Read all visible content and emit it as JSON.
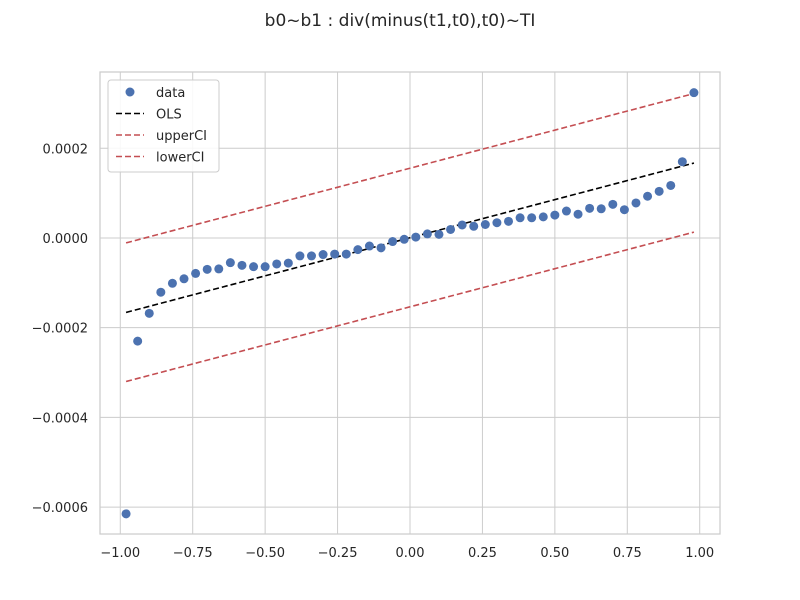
{
  "chart_data": {
    "type": "scatter",
    "title": "b0~b1 : div(minus(t1,t0),t0)~TI",
    "xlabel": "",
    "ylabel": "",
    "xlim": [
      -1.07,
      1.07
    ],
    "ylim": [
      -0.00066,
      0.00037
    ],
    "grid": true,
    "legend_position": "top-left",
    "xticks": [
      -1.0,
      -0.75,
      -0.5,
      -0.25,
      0.0,
      0.25,
      0.5,
      0.75,
      1.0
    ],
    "xtick_labels": [
      "−1.00",
      "−0.75",
      "−0.50",
      "−0.25",
      "0.00",
      "0.25",
      "0.50",
      "0.75",
      "1.00"
    ],
    "yticks": [
      -0.0006,
      -0.0004,
      -0.0002,
      0.0,
      0.0002
    ],
    "ytick_labels": [
      "−0.0006",
      "−0.0004",
      "−0.0002",
      "0.0000",
      "0.0002"
    ],
    "series": [
      {
        "name": "data",
        "kind": "scatter",
        "color": "#4c72b0",
        "x": [
          -0.98,
          -0.94,
          -0.9,
          -0.86,
          -0.82,
          -0.78,
          -0.74,
          -0.7,
          -0.66,
          -0.62,
          -0.58,
          -0.54,
          -0.5,
          -0.46,
          -0.42,
          -0.38,
          -0.34,
          -0.3,
          -0.26,
          -0.22,
          -0.18,
          -0.14,
          -0.1,
          -0.06,
          -0.02,
          0.02,
          0.06,
          0.1,
          0.14,
          0.18,
          0.22,
          0.26,
          0.3,
          0.34,
          0.38,
          0.42,
          0.46,
          0.5,
          0.54,
          0.58,
          0.62,
          0.66,
          0.7,
          0.74,
          0.78,
          0.82,
          0.86,
          0.9,
          0.94,
          0.98
        ],
        "y": [
          -0.000615,
          -0.00023,
          -0.000168,
          -0.000121,
          -0.000101,
          -9.1e-05,
          -7.9e-05,
          -7e-05,
          -6.9e-05,
          -5.5e-05,
          -6.1e-05,
          -6.4e-05,
          -6.4e-05,
          -5.8e-05,
          -5.6e-05,
          -4e-05,
          -4e-05,
          -3.7e-05,
          -3.6e-05,
          -3.6e-05,
          -2.6e-05,
          -1.8e-05,
          -2.2e-05,
          -8e-06,
          -3e-06,
          2e-06,
          9e-06,
          8e-06,
          1.9e-05,
          2.9e-05,
          2.6e-05,
          3e-05,
          3.4e-05,
          3.7e-05,
          4.5e-05,
          4.5e-05,
          4.7e-05,
          5.1e-05,
          6e-05,
          5.3e-05,
          6.6e-05,
          6.5e-05,
          7.5e-05,
          6.3e-05,
          7.8e-05,
          9.3e-05,
          0.000104,
          0.000117,
          0.00017,
          0.000324
        ]
      },
      {
        "name": "OLS",
        "kind": "line",
        "style": "dashed",
        "color": "#000000",
        "x": [
          -0.98,
          0.98
        ],
        "y": [
          -0.000166,
          0.000167
        ]
      },
      {
        "name": "upperCI",
        "kind": "line",
        "style": "dashed",
        "color": "#c44e52",
        "x": [
          -0.98,
          0.98
        ],
        "y": [
          -1.1e-05,
          0.000322
        ]
      },
      {
        "name": "lowerCI",
        "kind": "line",
        "style": "dashed",
        "color": "#c44e52",
        "x": [
          -0.98,
          0.98
        ],
        "y": [
          -0.00032,
          1.3e-05
        ]
      }
    ]
  }
}
